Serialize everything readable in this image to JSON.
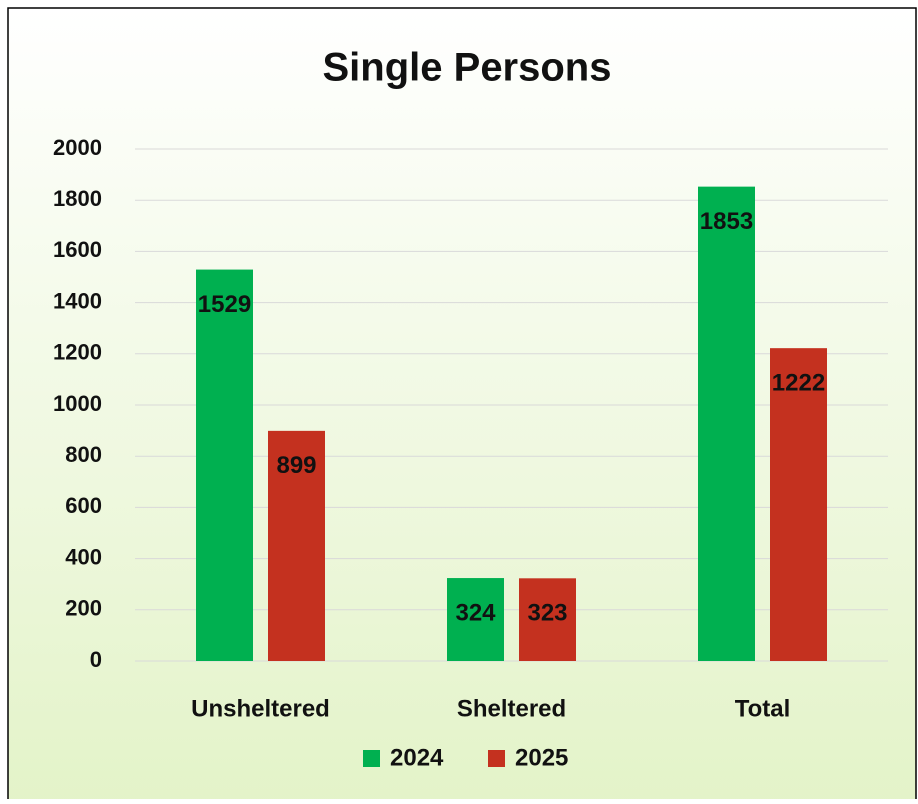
{
  "chart_data": {
    "type": "bar",
    "title": "Single Persons",
    "categories": [
      "Unsheltered",
      "Sheltered",
      "Total"
    ],
    "series": [
      {
        "name": "2024",
        "color": "#00b050",
        "values": [
          1529,
          324,
          1853
        ]
      },
      {
        "name": "2025",
        "color": "#c4311f",
        "values": [
          899,
          323,
          1222
        ]
      }
    ],
    "ylim": [
      0,
      2000
    ],
    "yticks": [
      0,
      200,
      400,
      600,
      800,
      1000,
      1200,
      1400,
      1600,
      1800,
      2000
    ],
    "grid": true,
    "legend": "bottom"
  }
}
